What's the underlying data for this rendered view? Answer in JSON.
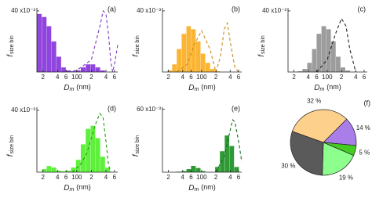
{
  "chart_data": [
    {
      "type": "histogram",
      "label": "(a)",
      "ylabel": "f",
      "ylabel_sub": "size bin",
      "xlabel": "D",
      "xlabel_sub": "m",
      "xlabel_unit": "(nm)",
      "log_x": true,
      "xlim": [
        15,
        700
      ],
      "ylim": [
        0,
        42
      ],
      "xticks": [
        {
          "value": 20,
          "label": "2"
        },
        {
          "value": 40,
          "label": "4"
        },
        {
          "value": 60,
          "label": "6"
        },
        100,
        {
          "value": 200,
          "label": "2"
        },
        {
          "value": 400,
          "label": "4"
        },
        {
          "value": 600,
          "label": "6"
        }
      ],
      "yticks": [
        {
          "value": 40,
          "label": "40 x10⁻³"
        }
      ],
      "bins": [
        15,
        19,
        24,
        30,
        38,
        48,
        60,
        76,
        96,
        121,
        153,
        193,
        243,
        307,
        387,
        488,
        616
      ],
      "counts": [
        38,
        36,
        30,
        20,
        10,
        3,
        1,
        0.5,
        1,
        3,
        5,
        5,
        3,
        1,
        0,
        0
      ],
      "color": "#8f45de",
      "line": {
        "x": [
          50,
          100,
          200,
          300,
          350,
          400,
          450,
          500,
          550,
          600,
          700
        ],
        "y": [
          0,
          1,
          8,
          30,
          40,
          38,
          25,
          8,
          0,
          5,
          18
        ],
        "color": "#7a3cc0",
        "dashed": true
      }
    },
    {
      "type": "histogram",
      "label": "(b)",
      "ylabel": "f",
      "ylabel_sub": "size bin",
      "xlabel": "D",
      "xlabel_sub": "m",
      "xlabel_unit": "(nm)",
      "log_x": true,
      "xlim": [
        15,
        700
      ],
      "ylim": [
        0,
        42
      ],
      "xticks": [
        {
          "value": 20,
          "label": "2"
        },
        {
          "value": 40,
          "label": "4"
        },
        {
          "value": 60,
          "label": "6"
        },
        100,
        {
          "value": 200,
          "label": "2"
        },
        {
          "value": 400,
          "label": "4"
        },
        {
          "value": 600,
          "label": "6"
        }
      ],
      "yticks": [
        {
          "value": 40,
          "label": "40 x10⁻³"
        }
      ],
      "bins": [
        15,
        19,
        24,
        30,
        38,
        48,
        60,
        76,
        96,
        121,
        153,
        193,
        243,
        307,
        387,
        488,
        616
      ],
      "counts": [
        0,
        1,
        5,
        15,
        25,
        30,
        28,
        20,
        12,
        6,
        2,
        0.5,
        0,
        0,
        0,
        0
      ],
      "color": "#fbb535",
      "line": {
        "x": [
          30,
          50,
          70,
          100,
          150,
          200,
          250,
          300,
          350,
          400,
          500,
          600
        ],
        "y": [
          0,
          5,
          18,
          27,
          15,
          0,
          10,
          28,
          32,
          20,
          3,
          0
        ],
        "color": "#c98a1c",
        "dashed": true
      }
    },
    {
      "type": "histogram",
      "label": "(c)",
      "ylabel": "f",
      "ylabel_sub": "size bin",
      "xlabel": "D",
      "xlabel_sub": "m",
      "xlabel_unit": "(nm)",
      "log_x": true,
      "xlim": [
        15,
        700
      ],
      "ylim": [
        0,
        42
      ],
      "xticks": [
        {
          "value": 20,
          "label": "2"
        },
        {
          "value": 40,
          "label": "4"
        },
        {
          "value": 60,
          "label": "6"
        },
        100,
        {
          "value": 200,
          "label": "2"
        },
        {
          "value": 400,
          "label": "4"
        },
        {
          "value": 600,
          "label": "6"
        }
      ],
      "yticks": [
        {
          "value": 40,
          "label": "40 x10⁻³"
        }
      ],
      "bins": [
        15,
        19,
        24,
        30,
        38,
        48,
        60,
        76,
        96,
        121,
        153,
        193,
        243,
        307,
        387,
        488,
        616
      ],
      "counts": [
        0,
        0,
        0.5,
        2,
        6,
        15,
        25,
        30,
        28,
        20,
        10,
        3,
        1,
        0,
        0,
        0
      ],
      "color": "#9c9c9c",
      "line": {
        "x": [
          60,
          100,
          150,
          200,
          250,
          300,
          400
        ],
        "y": [
          0,
          8,
          25,
          35,
          30,
          15,
          0
        ],
        "color": "#222222",
        "dashed": true
      }
    },
    {
      "type": "histogram",
      "label": "(d)",
      "ylabel": "f",
      "ylabel_sub": "size bin",
      "xlabel": "D",
      "xlabel_sub": "m",
      "xlabel_unit": "(nm)",
      "log_x": true,
      "xlim": [
        15,
        700
      ],
      "ylim": [
        0,
        42
      ],
      "xticks": [
        {
          "value": 20,
          "label": "2"
        },
        {
          "value": 40,
          "label": "4"
        },
        {
          "value": 60,
          "label": "6"
        },
        100,
        {
          "value": 200,
          "label": "2"
        },
        {
          "value": 400,
          "label": "4"
        },
        {
          "value": 600,
          "label": "6"
        }
      ],
      "yticks": [
        {
          "value": 40,
          "label": "40 x10⁻³"
        }
      ],
      "bins": [
        15,
        19,
        24,
        30,
        38,
        48,
        60,
        76,
        96,
        121,
        153,
        193,
        243,
        307,
        387,
        488,
        616
      ],
      "counts": [
        0,
        2,
        4,
        3,
        1,
        0.5,
        1,
        3,
        8,
        18,
        28,
        30,
        22,
        10,
        3,
        0
      ],
      "color": "#5ff03c",
      "line": {
        "x": [
          80,
          120,
          160,
          200,
          250,
          300,
          350,
          400,
          450,
          500
        ],
        "y": [
          0,
          5,
          12,
          22,
          32,
          38,
          35,
          20,
          5,
          0
        ],
        "color": "#2a9a1a",
        "dashed": true
      }
    },
    {
      "type": "histogram",
      "label": "(e)",
      "ylabel": "f",
      "ylabel_sub": "size bin",
      "xlabel": "D",
      "xlabel_sub": "m",
      "xlabel_unit": "(nm)",
      "log_x": true,
      "xlim": [
        15,
        700
      ],
      "ylim": [
        0,
        62
      ],
      "xticks": [
        {
          "value": 20,
          "label": "2"
        },
        {
          "value": 40,
          "label": "4"
        },
        {
          "value": 60,
          "label": "6"
        },
        100,
        {
          "value": 200,
          "label": "2"
        },
        {
          "value": 400,
          "label": "4"
        },
        {
          "value": 600,
          "label": "6"
        }
      ],
      "yticks": [
        {
          "value": 60,
          "label": "60 x10⁻³"
        }
      ],
      "bins": [
        15,
        19,
        24,
        30,
        38,
        48,
        60,
        76,
        96,
        121,
        153,
        193,
        243,
        307,
        387,
        488,
        616
      ],
      "counts": [
        0,
        0,
        0,
        0.5,
        1,
        3,
        6,
        4,
        1,
        0,
        0,
        5,
        20,
        35,
        25,
        5
      ],
      "color": "#2f9a35",
      "line": {
        "x": [
          200,
          300,
          400,
          450,
          500,
          600,
          700
        ],
        "y": [
          0,
          15,
          40,
          50,
          48,
          30,
          10
        ],
        "color": "#1d6b22",
        "dashed": true
      }
    },
    {
      "type": "pie",
      "label": "(f)",
      "values": [
        14,
        5,
        19,
        30,
        32
      ],
      "value_labels": [
        "14 %",
        "5 %",
        "19 %",
        "30 %",
        "32 %"
      ],
      "colors": [
        "#a97ee9",
        "#45cc22",
        "#8cff8c",
        "#5a5a5a",
        "#fdd18c"
      ]
    }
  ]
}
